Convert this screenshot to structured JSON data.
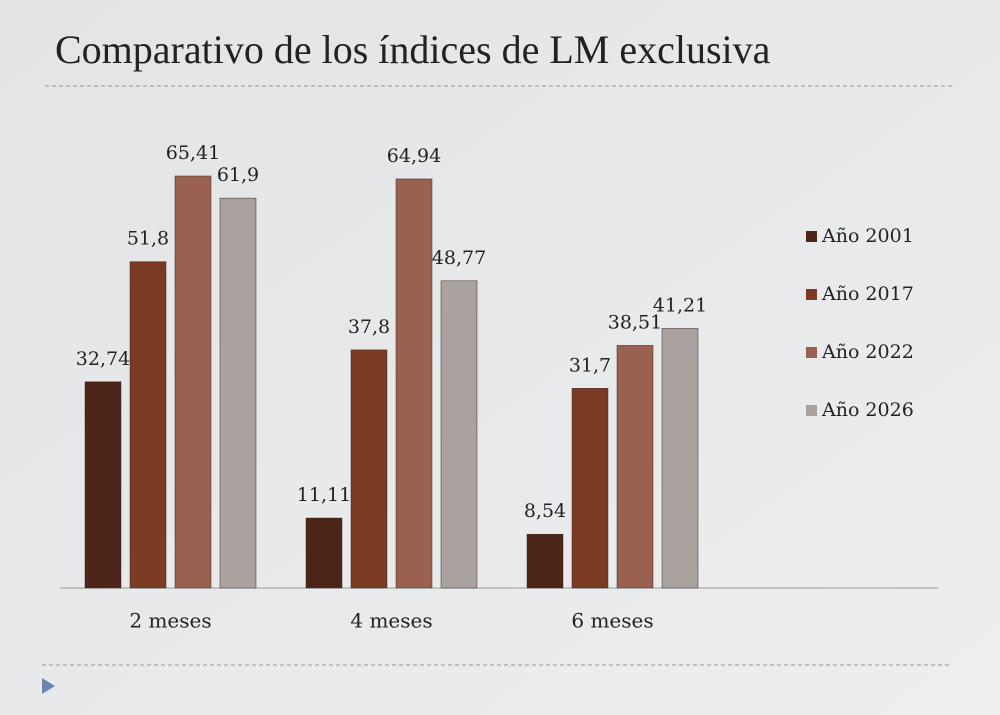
{
  "chart_data": {
    "type": "bar",
    "title": "Comparativo de los índices de LM exclusiva",
    "categories": [
      "2 meses",
      "4 meses",
      "6 meses"
    ],
    "series": [
      {
        "name": "Año 2001",
        "color": "#4d2518",
        "values": [
          32.74,
          11.11,
          8.54
        ],
        "value_labels": [
          "32,74",
          "11,11",
          "8,54"
        ]
      },
      {
        "name": "Año 2017",
        "color": "#7b3b23",
        "values": [
          51.8,
          37.8,
          31.7
        ],
        "value_labels": [
          "51,8",
          "37,8",
          "31,7"
        ]
      },
      {
        "name": "Año 2022",
        "color": "#9b6150",
        "values": [
          65.41,
          64.94,
          38.51
        ],
        "value_labels": [
          "65,41",
          "64,94",
          "38,51"
        ]
      },
      {
        "name": "Año 2026",
        "color": "#aaa29e",
        "values": [
          61.9,
          48.77,
          41.21
        ],
        "value_labels": [
          "61,9",
          "48,77",
          "41,21"
        ]
      }
    ]
  }
}
